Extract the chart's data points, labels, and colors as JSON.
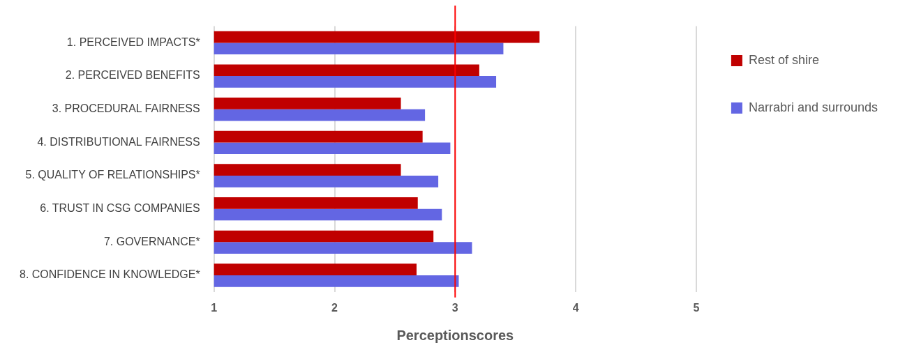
{
  "chart_data": {
    "type": "bar",
    "orientation": "horizontal",
    "xlabel": "Perceptionscores",
    "categories": [
      "1. PERCEIVED IMPACTS*",
      "2. PERCEIVED BENEFITS",
      "3. PROCEDURAL FAIRNESS",
      "4. DISTRIBUTIONAL FAIRNESS",
      "5. QUALITY OF RELATIONSHIPS*",
      "6. TRUST IN CSG COMPANIES",
      "7. GOVERNANCE*",
      "8. CONFIDENCE IN KNOWLEDGE*"
    ],
    "series": [
      {
        "name": "Rest of shire",
        "color": "#c00000",
        "values": [
          3.7,
          3.2,
          2.55,
          2.73,
          2.55,
          2.69,
          2.82,
          2.68
        ]
      },
      {
        "name": "Narrabri and surrounds",
        "color": "#6366e3",
        "values": [
          3.4,
          3.34,
          2.75,
          2.96,
          2.86,
          2.89,
          3.14,
          3.03
        ]
      }
    ],
    "xlim": [
      1,
      5
    ],
    "xticks": [
      1,
      2,
      3,
      4,
      5
    ],
    "grid": "x",
    "legend": "right",
    "ref_lines": [
      {
        "axis": "x",
        "value": 3,
        "color": "#ff0000"
      }
    ]
  }
}
